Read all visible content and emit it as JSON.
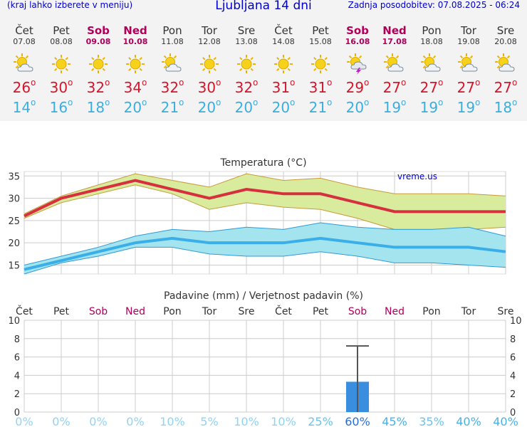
{
  "header": {
    "left_note": "(kraj lahko izberete v meniju)",
    "title": "Ljubljana 14 dni",
    "updated": "Zadnja posodobitev: 07.08.2025 - 06:24"
  },
  "days": [
    {
      "name": "Čet",
      "date": "07.08",
      "weekend": false,
      "icon": "sun-cloud-icon",
      "tmax": "26",
      "tmin": "14"
    },
    {
      "name": "Pet",
      "date": "08.08",
      "weekend": false,
      "icon": "sun-icon",
      "tmax": "30",
      "tmin": "16"
    },
    {
      "name": "Sob",
      "date": "09.08",
      "weekend": true,
      "icon": "sun-icon",
      "tmax": "32",
      "tmin": "18"
    },
    {
      "name": "Ned",
      "date": "10.08",
      "weekend": true,
      "icon": "sun-icon",
      "tmax": "34",
      "tmin": "20"
    },
    {
      "name": "Pon",
      "date": "11.08",
      "weekend": false,
      "icon": "sun-cloud-icon",
      "tmax": "32",
      "tmin": "21"
    },
    {
      "name": "Tor",
      "date": "12.08",
      "weekend": false,
      "icon": "sun-icon",
      "tmax": "30",
      "tmin": "20"
    },
    {
      "name": "Sre",
      "date": "13.08",
      "weekend": false,
      "icon": "sun-icon",
      "tmax": "32",
      "tmin": "20"
    },
    {
      "name": "Čet",
      "date": "14.08",
      "weekend": false,
      "icon": "sun-icon",
      "tmax": "31",
      "tmin": "20"
    },
    {
      "name": "Pet",
      "date": "15.08",
      "weekend": false,
      "icon": "sun-icon",
      "tmax": "31",
      "tmin": "21"
    },
    {
      "name": "Sob",
      "date": "16.08",
      "weekend": true,
      "icon": "thunder-cloud-icon",
      "tmax": "29",
      "tmin": "20"
    },
    {
      "name": "Ned",
      "date": "17.08",
      "weekend": true,
      "icon": "sun-cloud-icon",
      "tmax": "27",
      "tmin": "19"
    },
    {
      "name": "Pon",
      "date": "18.08",
      "weekend": false,
      "icon": "sun-cloud-icon",
      "tmax": "27",
      "tmin": "19"
    },
    {
      "name": "Tor",
      "date": "19.08",
      "weekend": false,
      "icon": "sun-cloud-icon",
      "tmax": "27",
      "tmin": "19"
    },
    {
      "name": "Sre",
      "date": "20.08",
      "weekend": false,
      "icon": "sun-cloud-icon",
      "tmax": "27",
      "tmin": "18"
    }
  ],
  "chart_data": [
    {
      "type": "line",
      "title": "Temperatura (°C)",
      "watermark": "vreme.us",
      "x": [
        "Čet",
        "Pet",
        "Sob",
        "Ned",
        "Pon",
        "Tor",
        "Sre",
        "Čet",
        "Pet",
        "Sob",
        "Ned",
        "Pon",
        "Tor",
        "Sre"
      ],
      "ylim": [
        13,
        36
      ],
      "yticks": [
        15,
        20,
        25,
        30,
        35
      ],
      "grid": true,
      "series": [
        {
          "name": "tmax",
          "color": "#d6303e",
          "values": [
            26,
            30,
            32,
            34,
            32,
            30,
            32,
            31,
            31,
            29,
            27,
            27,
            27,
            27
          ]
        },
        {
          "name": "tmax_upper",
          "values": [
            26.5,
            30.5,
            33,
            35.5,
            34,
            32.5,
            35.5,
            34,
            34.5,
            32.5,
            31,
            31,
            31,
            30.5
          ]
        },
        {
          "name": "tmax_lower",
          "values": [
            25.5,
            29,
            31,
            33,
            31,
            27.5,
            29,
            28,
            27.5,
            25.5,
            23,
            23,
            23,
            23.5
          ]
        },
        {
          "name": "tmin",
          "color": "#3aaee8",
          "values": [
            14,
            16,
            18,
            20,
            21,
            20,
            20,
            20,
            21,
            20,
            19,
            19,
            19,
            18
          ]
        },
        {
          "name": "tmin_upper",
          "values": [
            15,
            17,
            19,
            21.5,
            23,
            22.5,
            23.5,
            23,
            24.5,
            23.5,
            23,
            23,
            23.5,
            21.5
          ]
        },
        {
          "name": "tmin_lower",
          "values": [
            13,
            15.5,
            17,
            19,
            19,
            17.5,
            17,
            17,
            18,
            17,
            15.5,
            15.5,
            15,
            14.5
          ]
        }
      ]
    },
    {
      "type": "bar",
      "title": "Padavine (mm) / Verjetnost padavin (%)",
      "categories": [
        "Čet",
        "Pet",
        "Sob",
        "Ned",
        "Pon",
        "Tor",
        "Sre",
        "Čet",
        "Pet",
        "Sob",
        "Ned",
        "Pon",
        "Tor",
        "Sre"
      ],
      "weekend": [
        false,
        false,
        true,
        true,
        false,
        false,
        false,
        false,
        false,
        true,
        true,
        false,
        false,
        false
      ],
      "ylim": [
        0,
        10
      ],
      "yticks": [
        0,
        2,
        4,
        6,
        8,
        10
      ],
      "values": [
        0,
        0,
        0,
        0,
        0,
        0,
        0,
        0,
        0,
        3.3,
        0,
        0,
        0,
        0
      ],
      "error_high": [
        0,
        0,
        0,
        0,
        0,
        0,
        0,
        0,
        0,
        7.2,
        0,
        0,
        0,
        0
      ],
      "probability_labels": [
        "0%",
        "0%",
        "0%",
        "0%",
        "10%",
        "5%",
        "10%",
        "10%",
        "25%",
        "60%",
        "45%",
        "35%",
        "40%",
        "40%"
      ],
      "probability_values": [
        0,
        0,
        0,
        0,
        10,
        5,
        10,
        10,
        25,
        60,
        45,
        35,
        40,
        40
      ]
    }
  ],
  "colors": {
    "title_blue": "#0000cc",
    "weekend": "#b0005a",
    "tmax_text": "#d6152b",
    "tmin_text": "#3aaee0",
    "tmax_band": "#d9ec9e",
    "tmin_band": "#a3e4ef",
    "bar": "#3a8ee0",
    "prob_low": "#8fd3f5",
    "prob_high": "#2a6cd6"
  }
}
